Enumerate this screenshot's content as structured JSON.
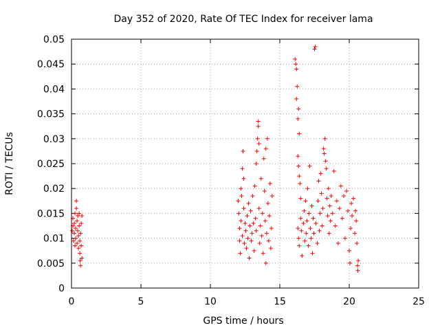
{
  "chart_data": {
    "type": "scatter",
    "title": "Day 352 of 2020, Rate Of TEC Index for receiver lama",
    "xlabel": "GPS time / hours",
    "ylabel": "ROTI / TECUs",
    "xlim": [
      0,
      25
    ],
    "ylim": [
      0,
      0.05
    ],
    "x_ticks": [
      0,
      5,
      10,
      15,
      20,
      25
    ],
    "x_tick_labels": [
      "0",
      "5",
      "10",
      "15",
      "20",
      "25"
    ],
    "y_ticks": [
      0,
      0.005,
      0.01,
      0.015,
      0.02,
      0.025,
      0.03,
      0.035,
      0.04,
      0.045,
      0.05
    ],
    "y_tick_labels": [
      "0",
      "0.005",
      "0.01",
      "0.015",
      "0.02",
      "0.025",
      "0.03",
      "0.035",
      "0.04",
      "0.045",
      "0.05"
    ],
    "grid": true,
    "marker": "+",
    "series": [
      {
        "name": "ROTI",
        "color": "#ff0000",
        "points": [
          [
            0.05,
            0.0115
          ],
          [
            0.1,
            0.0125
          ],
          [
            0.1,
            0.014
          ],
          [
            0.15,
            0.0095
          ],
          [
            0.2,
            0.011
          ],
          [
            0.2,
            0.013
          ],
          [
            0.25,
            0.0085
          ],
          [
            0.25,
            0.015
          ],
          [
            0.3,
            0.012
          ],
          [
            0.3,
            0.01
          ],
          [
            0.35,
            0.016
          ],
          [
            0.35,
            0.0175
          ],
          [
            0.4,
            0.009
          ],
          [
            0.4,
            0.0135
          ],
          [
            0.45,
            0.0115
          ],
          [
            0.45,
            0.0145
          ],
          [
            0.5,
            0.0105
          ],
          [
            0.5,
            0.008
          ],
          [
            0.55,
            0.0125
          ],
          [
            0.55,
            0.015
          ],
          [
            0.6,
            0.007
          ],
          [
            0.6,
            0.0095
          ],
          [
            0.62,
            0.0055
          ],
          [
            0.65,
            0.0045
          ],
          [
            0.65,
            0.011
          ],
          [
            0.7,
            0.013
          ],
          [
            0.7,
            0.0085
          ],
          [
            0.75,
            0.0145
          ],
          [
            0.75,
            0.006
          ],
          [
            12.0,
            0.0175
          ],
          [
            12.05,
            0.015
          ],
          [
            12.1,
            0.0095
          ],
          [
            12.1,
            0.012
          ],
          [
            12.15,
            0.007
          ],
          [
            12.2,
            0.02
          ],
          [
            12.2,
            0.0135
          ],
          [
            12.25,
            0.0185
          ],
          [
            12.3,
            0.024
          ],
          [
            12.3,
            0.0105
          ],
          [
            12.35,
            0.0275
          ],
          [
            12.4,
            0.022
          ],
          [
            12.4,
            0.016
          ],
          [
            12.45,
            0.009
          ],
          [
            12.5,
            0.013
          ],
          [
            12.55,
            0.0115
          ],
          [
            12.6,
            0.008
          ],
          [
            12.65,
            0.0145
          ],
          [
            12.7,
            0.01
          ],
          [
            12.75,
            0.017
          ],
          [
            12.8,
            0.006
          ],
          [
            12.85,
            0.0125
          ],
          [
            12.9,
            0.0155
          ],
          [
            12.95,
            0.0095
          ],
          [
            13.0,
            0.011
          ],
          [
            13.05,
            0.0185
          ],
          [
            13.1,
            0.013
          ],
          [
            13.15,
            0.0075
          ],
          [
            13.2,
            0.0205
          ],
          [
            13.25,
            0.014
          ],
          [
            13.3,
            0.025
          ],
          [
            13.3,
            0.0115
          ],
          [
            13.35,
            0.0275
          ],
          [
            13.4,
            0.03
          ],
          [
            13.45,
            0.0325
          ],
          [
            13.45,
            0.0335
          ],
          [
            13.5,
            0.029
          ],
          [
            13.5,
            0.016
          ],
          [
            13.55,
            0.009
          ],
          [
            13.6,
            0.0125
          ],
          [
            13.65,
            0.022
          ],
          [
            13.7,
            0.0105
          ],
          [
            13.75,
            0.015
          ],
          [
            13.8,
            0.007
          ],
          [
            13.85,
            0.026
          ],
          [
            13.9,
            0.0195
          ],
          [
            13.95,
            0.0135
          ],
          [
            14.0,
            0.028
          ],
          [
            14.0,
            0.005
          ],
          [
            14.05,
            0.011
          ],
          [
            14.1,
            0.03
          ],
          [
            14.15,
            0.017
          ],
          [
            14.2,
            0.0095
          ],
          [
            14.25,
            0.0145
          ],
          [
            14.3,
            0.021
          ],
          [
            14.35,
            0.008
          ],
          [
            14.4,
            0.012
          ],
          [
            14.45,
            0.0185
          ],
          [
            16.1,
            0.046
          ],
          [
            16.15,
            0.045
          ],
          [
            16.2,
            0.044
          ],
          [
            16.25,
            0.0405
          ],
          [
            16.2,
            0.038
          ],
          [
            16.3,
            0.034
          ],
          [
            16.35,
            0.036
          ],
          [
            16.4,
            0.031
          ],
          [
            16.3,
            0.0265
          ],
          [
            16.35,
            0.0245
          ],
          [
            16.4,
            0.0225
          ],
          [
            16.45,
            0.021
          ],
          [
            16.5,
            0.018
          ],
          [
            16.3,
            0.012
          ],
          [
            16.35,
            0.01
          ],
          [
            16.4,
            0.0085
          ],
          [
            16.5,
            0.014
          ],
          [
            16.55,
            0.0115
          ],
          [
            16.6,
            0.0065
          ],
          [
            16.7,
            0.013
          ],
          [
            16.75,
            0.0155
          ],
          [
            16.8,
            0.0095
          ],
          [
            16.85,
            0.0175
          ],
          [
            16.9,
            0.011
          ],
          [
            16.95,
            0.0135
          ],
          [
            17.0,
            0.02
          ],
          [
            17.05,
            0.0085
          ],
          [
            17.1,
            0.015
          ],
          [
            17.15,
            0.0245
          ],
          [
            17.2,
            0.012
          ],
          [
            17.25,
            0.01
          ],
          [
            17.3,
            0.0165
          ],
          [
            17.35,
            0.007
          ],
          [
            17.4,
            0.014
          ],
          [
            17.45,
            0.011
          ],
          [
            17.5,
            0.048
          ],
          [
            17.55,
            0.0485
          ],
          [
            17.6,
            0.013
          ],
          [
            17.7,
            0.009
          ],
          [
            17.75,
            0.0175
          ],
          [
            17.8,
            0.0215
          ],
          [
            17.85,
            0.0115
          ],
          [
            17.9,
            0.015
          ],
          [
            17.95,
            0.023
          ],
          [
            18.0,
            0.019
          ],
          [
            18.05,
            0.0125
          ],
          [
            18.1,
            0.016
          ],
          [
            18.15,
            0.028
          ],
          [
            18.2,
            0.027
          ],
          [
            18.25,
            0.03
          ],
          [
            18.3,
            0.0255
          ],
          [
            18.35,
            0.024
          ],
          [
            18.4,
            0.018
          ],
          [
            18.45,
            0.0145
          ],
          [
            18.5,
            0.02
          ],
          [
            18.55,
            0.011
          ],
          [
            18.6,
            0.0165
          ],
          [
            18.65,
            0.0135
          ],
          [
            18.7,
            0.0185
          ],
          [
            18.8,
            0.015
          ],
          [
            18.9,
            0.0235
          ],
          [
            19.0,
            0.0125
          ],
          [
            19.1,
            0.0175
          ],
          [
            19.2,
            0.009
          ],
          [
            19.3,
            0.016
          ],
          [
            19.4,
            0.0205
          ],
          [
            19.5,
            0.014
          ],
          [
            19.6,
            0.0185
          ],
          [
            19.7,
            0.01
          ],
          [
            19.8,
            0.0195
          ],
          [
            19.9,
            0.0155
          ],
          [
            20.0,
            0.0075
          ],
          [
            20.05,
            0.005
          ],
          [
            20.1,
            0.012
          ],
          [
            20.15,
            0.017
          ],
          [
            20.2,
            0.0145
          ],
          [
            20.3,
            0.018
          ],
          [
            20.4,
            0.011
          ],
          [
            20.45,
            0.0155
          ],
          [
            20.5,
            0.0135
          ],
          [
            20.55,
            0.009
          ],
          [
            20.6,
            0.0045
          ],
          [
            20.62,
            0.0035
          ],
          [
            20.65,
            0.0055
          ]
        ]
      }
    ]
  }
}
